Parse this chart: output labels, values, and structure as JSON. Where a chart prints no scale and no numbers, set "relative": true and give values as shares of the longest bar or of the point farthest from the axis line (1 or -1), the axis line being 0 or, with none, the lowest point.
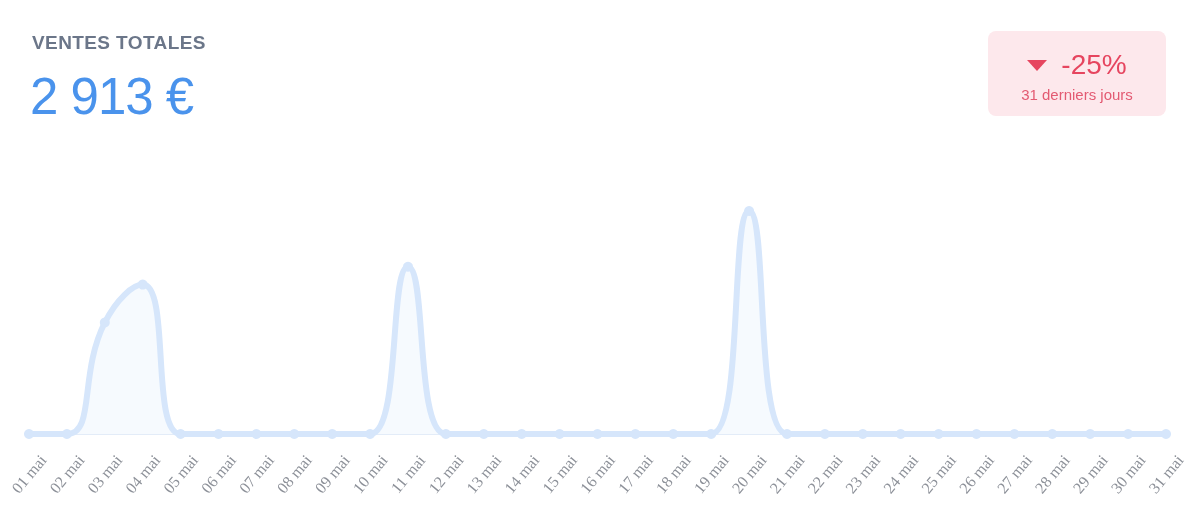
{
  "chart_data": {
    "type": "area",
    "title": "VENTES TOTALES",
    "subtitle": "2 913 €",
    "annotations": [
      "-25%",
      "31 derniers jours"
    ],
    "categories": [
      "01 mai",
      "02 mai",
      "03 mai",
      "04 mai",
      "05 mai",
      "06 mai",
      "07 mai",
      "08 mai",
      "09 mai",
      "10 mai",
      "11 mai",
      "12 mai",
      "13 mai",
      "14 mai",
      "15 mai",
      "16 mai",
      "17 mai",
      "18 mai",
      "19 mai",
      "20 mai",
      "21 mai",
      "22 mai",
      "23 mai",
      "24 mai",
      "25 mai",
      "26 mai",
      "27 mai",
      "28 mai",
      "29 mai",
      "30 mai",
      "31 mai"
    ],
    "values": [
      0,
      0,
      0.5,
      0.67,
      0,
      0,
      0,
      0,
      0,
      0,
      0.75,
      0,
      0,
      0,
      0,
      0,
      0,
      0,
      0,
      1,
      0,
      0,
      0,
      0,
      0,
      0,
      0,
      0,
      0,
      0,
      0
    ],
    "color": "#d6e6fb",
    "relative": true,
    "marker": "circle"
  }
}
